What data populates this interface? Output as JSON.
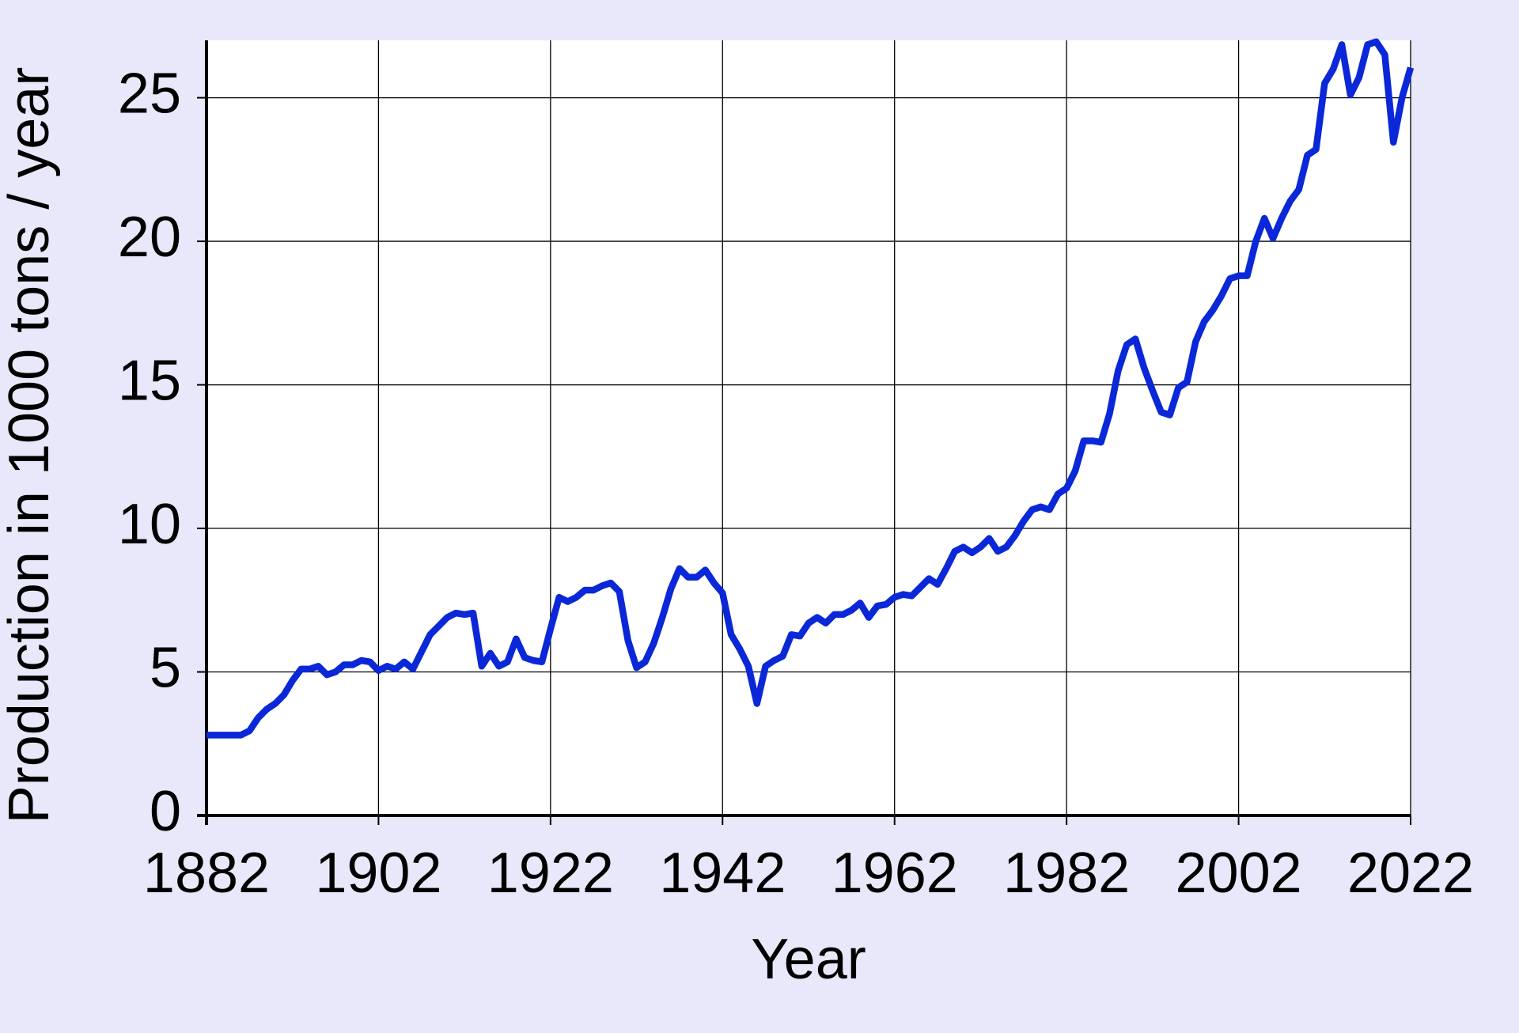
{
  "chart_data": {
    "type": "line",
    "x_label": "Year",
    "y_label": "Production in 1000 tons / year",
    "x": [
      1882,
      1883,
      1884,
      1885,
      1886,
      1887,
      1888,
      1889,
      1890,
      1891,
      1892,
      1893,
      1894,
      1895,
      1896,
      1897,
      1898,
      1899,
      1900,
      1901,
      1902,
      1903,
      1904,
      1905,
      1906,
      1907,
      1908,
      1909,
      1910,
      1911,
      1912,
      1913,
      1914,
      1915,
      1916,
      1917,
      1918,
      1919,
      1920,
      1921,
      1922,
      1923,
      1924,
      1925,
      1926,
      1927,
      1928,
      1929,
      1930,
      1931,
      1932,
      1933,
      1934,
      1935,
      1936,
      1937,
      1938,
      1939,
      1940,
      1941,
      1942,
      1943,
      1944,
      1945,
      1946,
      1947,
      1948,
      1949,
      1950,
      1951,
      1952,
      1953,
      1954,
      1955,
      1956,
      1957,
      1958,
      1959,
      1960,
      1961,
      1962,
      1963,
      1964,
      1965,
      1966,
      1967,
      1968,
      1969,
      1970,
      1971,
      1972,
      1973,
      1974,
      1975,
      1976,
      1977,
      1978,
      1979,
      1980,
      1981,
      1982,
      1983,
      1984,
      1985,
      1986,
      1987,
      1988,
      1989,
      1990,
      1991,
      1992,
      1993,
      1994,
      1995,
      1996,
      1997,
      1998,
      1999,
      2000,
      2001,
      2002,
      2003,
      2004,
      2005,
      2006,
      2007,
      2008,
      2009,
      2010,
      2011,
      2012,
      2013,
      2014,
      2015,
      2016,
      2017,
      2018,
      2019,
      2020,
      2021,
      2022
    ],
    "series": [
      {
        "name": "Production",
        "color": "#0a28d8",
        "values": [
          2.8,
          2.8,
          2.8,
          2.8,
          2.8,
          2.95,
          3.4,
          3.7,
          3.9,
          4.2,
          4.7,
          5.1,
          5.1,
          5.2,
          4.9,
          5.0,
          5.25,
          5.25,
          5.4,
          5.35,
          5.05,
          5.2,
          5.1,
          5.35,
          5.1,
          5.7,
          6.3,
          6.6,
          6.9,
          7.05,
          7.0,
          7.05,
          5.2,
          5.65,
          5.2,
          5.35,
          6.15,
          5.5,
          5.4,
          5.35,
          6.5,
          7.6,
          7.45,
          7.6,
          7.85,
          7.85,
          8.0,
          8.1,
          7.8,
          6.1,
          5.15,
          5.35,
          6.0,
          6.9,
          7.9,
          8.6,
          8.3,
          8.3,
          8.55,
          8.1,
          7.75,
          6.3,
          5.8,
          5.2,
          3.9,
          5.2,
          5.4,
          5.55,
          6.3,
          6.25,
          6.7,
          6.9,
          6.7,
          7.0,
          7.0,
          7.15,
          7.4,
          6.9,
          7.3,
          7.35,
          7.6,
          7.7,
          7.65,
          7.95,
          8.25,
          8.05,
          8.6,
          9.2,
          9.35,
          9.15,
          9.35,
          9.65,
          9.2,
          9.35,
          9.75,
          10.25,
          10.65,
          10.75,
          10.65,
          11.2,
          11.4,
          12.0,
          13.05,
          13.05,
          13.0,
          14.0,
          15.5,
          16.4,
          16.6,
          15.6,
          14.8,
          14.05,
          13.95,
          14.9,
          15.1,
          16.5,
          17.2,
          17.6,
          18.1,
          18.7,
          18.8,
          18.8,
          20.0,
          20.8,
          20.1,
          20.8,
          21.4,
          21.8,
          23.0,
          23.2,
          25.5,
          26.0,
          26.85,
          25.1,
          25.7,
          26.85,
          26.95,
          26.5,
          23.45,
          25.0,
          26.05
        ]
      }
    ],
    "xlim": [
      1882,
      2022
    ],
    "xticks": [
      1882,
      1902,
      1922,
      1942,
      1962,
      1982,
      2002,
      2022
    ],
    "ylim": [
      0,
      27
    ],
    "yticks": [
      0,
      5,
      10,
      15,
      20,
      25
    ],
    "grid": true
  }
}
